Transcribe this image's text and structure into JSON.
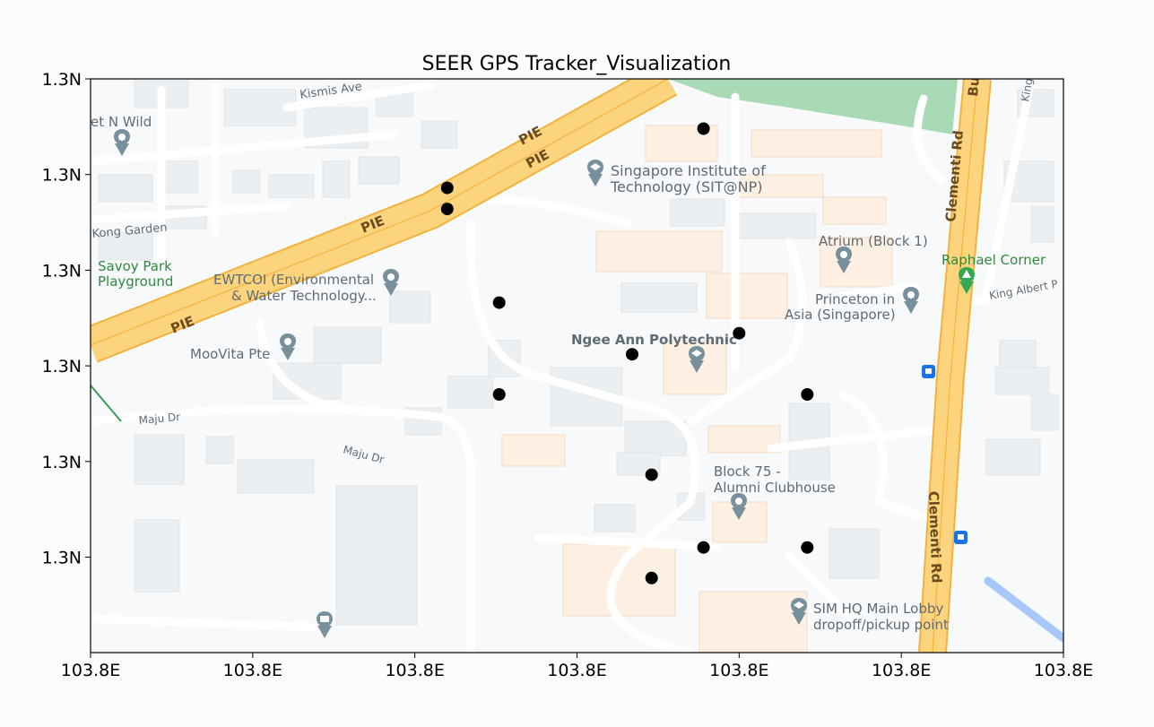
{
  "chart_data": {
    "type": "scatter",
    "title": "SEER GPS Tracker_Visualization",
    "xlabel": "",
    "ylabel": "",
    "x_tick_labels": [
      "103.8E",
      "103.8E",
      "103.8E",
      "103.8E",
      "103.8E",
      "103.8E",
      "103.8E"
    ],
    "y_tick_labels": [
      "1.3N",
      "1.3N",
      "1.3N",
      "1.3N",
      "1.3N",
      "1.3N"
    ],
    "xlim": [
      103.7756,
      103.7786
    ],
    "ylim": [
      1.3318,
      1.3348
    ],
    "grid": false,
    "marker_color": "#000000",
    "points": [
      {
        "x": 103.77749,
        "y": 1.33454
      },
      {
        "x": 103.7767,
        "y": 1.33423
      },
      {
        "x": 103.7767,
        "y": 1.33412
      },
      {
        "x": 103.77686,
        "y": 1.33363
      },
      {
        "x": 103.77727,
        "y": 1.33336
      },
      {
        "x": 103.7776,
        "y": 1.33347
      },
      {
        "x": 103.77686,
        "y": 1.33315
      },
      {
        "x": 103.77781,
        "y": 1.33315
      },
      {
        "x": 103.77733,
        "y": 1.33273
      },
      {
        "x": 103.77749,
        "y": 1.33235
      },
      {
        "x": 103.77781,
        "y": 1.33235
      },
      {
        "x": 103.77733,
        "y": 1.33219
      }
    ]
  },
  "basemap": {
    "labels": {
      "kismis": "Kismis Ave",
      "wild": "et N Wild",
      "kong": "Kong Garden",
      "savoy1": "Savoy Park",
      "savoy2": "Playground",
      "pie1": "PIE",
      "pie2": "PIE",
      "pie3": "PIE",
      "pie4": "PIE",
      "sit1": "Singapore Institute of",
      "sit2": "Technology (SIT@NP)",
      "atrium": "Atrium (Block 1)",
      "raphael": "Raphael Corner",
      "king": "King Albert P",
      "princeton1": "Princeton in",
      "princeton2": "Asia (Singapore)",
      "ewtcoi1": "EWTCOI (Environmental",
      "ewtcoi2": "& Water Technology...",
      "moovita": "MooVita Pte",
      "ngee": "Ngee Ann Polytechnic",
      "maju1": "Maju Dr",
      "maju2": "Maju Dr",
      "block1": "Block 75 -",
      "block2": "Alumni Clubhouse",
      "sim1": "SIM HQ Main Lobby",
      "sim2": "dropoff/pickup point",
      "clementi1": "Clementi Rd",
      "clementi2": "Clementi Rd",
      "bu": "Bu",
      "king2": "King"
    },
    "colors": {
      "background": "#f8f9fa",
      "road": "#ffffff",
      "highway": "#fdd47e",
      "highway_edge": "#f2b33d",
      "building": "#eceff1",
      "campus": "#fdf0e2",
      "park": "#a8dab5"
    }
  }
}
